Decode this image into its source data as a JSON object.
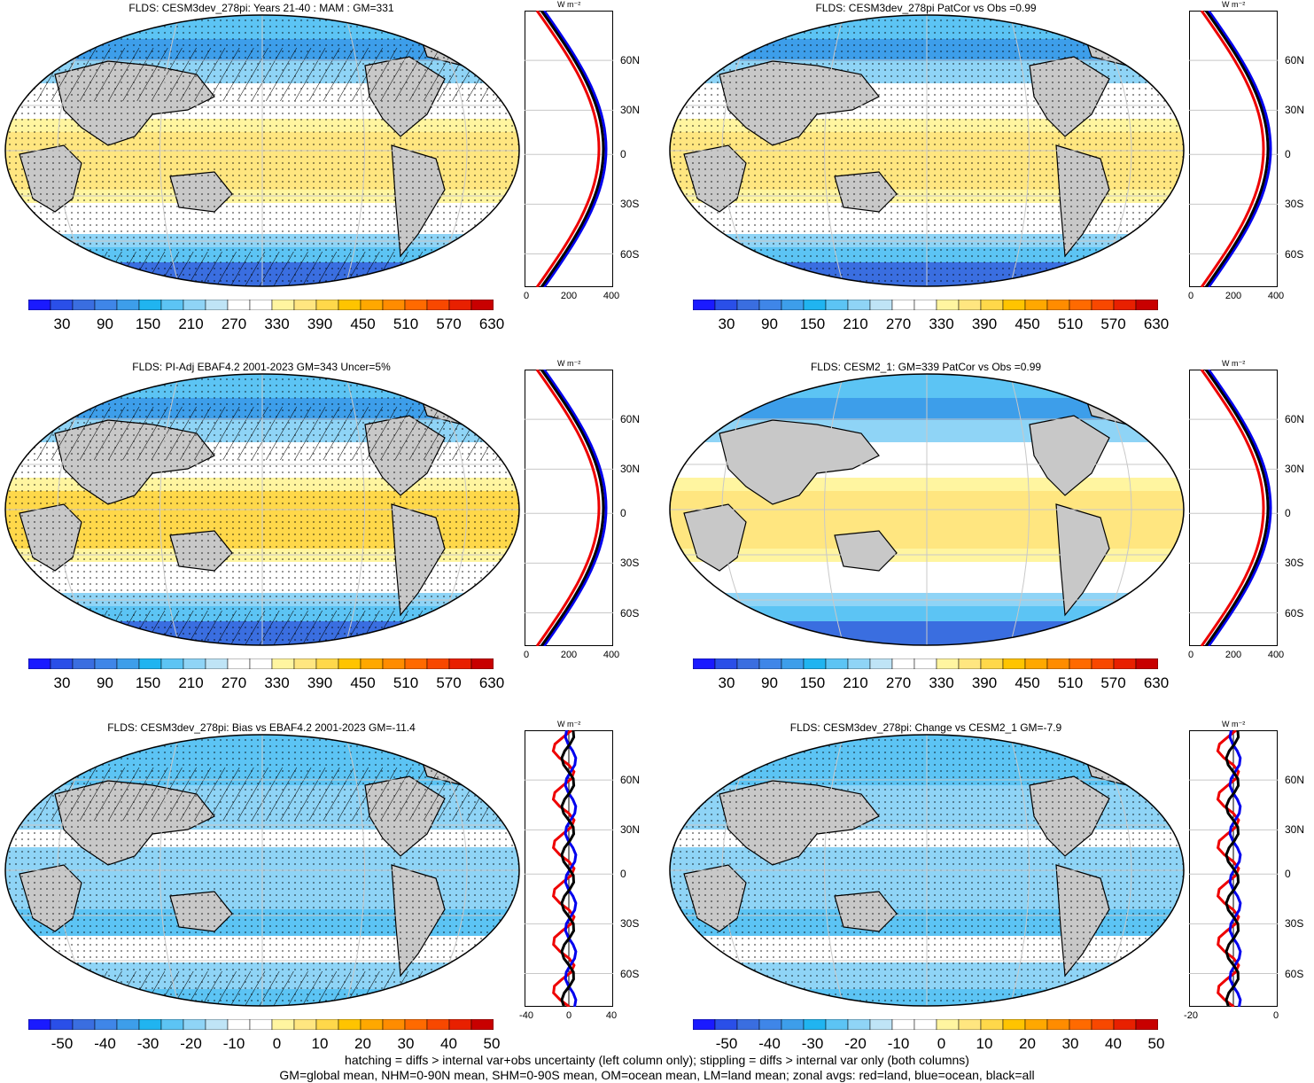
{
  "panels": [
    {
      "title": "FLDS: CESM3dev_278pi: Years 21-40 : MAM : GM=331",
      "scale": "abs",
      "ticks": [
        "30",
        "90",
        "150",
        "210",
        "270",
        "330",
        "390",
        "450",
        "510",
        "570",
        "630"
      ],
      "zonal_ticks": [
        "0",
        "200",
        "400"
      ],
      "hatch": true,
      "stipple": true
    },
    {
      "title": "FLDS: CESM3dev_278pi PatCor vs Obs =0.99",
      "scale": "abs",
      "ticks": [
        "30",
        "90",
        "150",
        "210",
        "270",
        "330",
        "390",
        "450",
        "510",
        "570",
        "630"
      ],
      "zonal_ticks": [
        "0",
        "200",
        "400"
      ],
      "hatch": false,
      "stipple": true
    },
    {
      "title": "FLDS: PI-Adj EBAF4.2 2001-2023 GM=343 Uncer=5%",
      "scale": "abs",
      "ticks": [
        "30",
        "90",
        "150",
        "210",
        "270",
        "330",
        "390",
        "450",
        "510",
        "570",
        "630"
      ],
      "zonal_ticks": [
        "0",
        "200",
        "400"
      ],
      "hatch": true,
      "stipple": true
    },
    {
      "title": "FLDS: CESM2_1: GM=339 PatCor vs Obs =0.99",
      "scale": "abs",
      "ticks": [
        "30",
        "90",
        "150",
        "210",
        "270",
        "330",
        "390",
        "450",
        "510",
        "570",
        "630"
      ],
      "zonal_ticks": [
        "0",
        "200",
        "400"
      ],
      "hatch": false,
      "stipple": false
    },
    {
      "title": "FLDS: CESM3dev_278pi: Bias vs EBAF4.2 2001-2023 GM=-11.4",
      "scale": "diff",
      "ticks": [
        "-50",
        "-40",
        "-30",
        "-20",
        "-10",
        "0",
        "10",
        "20",
        "30",
        "40",
        "50"
      ],
      "zonal_ticks": [
        "-40",
        "0",
        "40"
      ],
      "hatch": true,
      "stipple": true
    },
    {
      "title": "FLDS: CESM3dev_278pi: Change vs CESM2_1 GM=-7.9",
      "scale": "diff",
      "ticks": [
        "-50",
        "-40",
        "-30",
        "-20",
        "-10",
        "0",
        "10",
        "20",
        "30",
        "40",
        "50"
      ],
      "zonal_ticks": [
        "-20",
        "0"
      ],
      "hatch": false,
      "stipple": true
    }
  ],
  "zonal_unit": "W m⁻²",
  "lat_labels": [
    "60N",
    "30N",
    "0",
    "30S",
    "60S"
  ],
  "footer": {
    "line1": "hatching = diffs > internal var+obs uncertainty (left column only); stippling = diffs > internal var only (both columns)",
    "line2": "GM=global mean, NHM=0-90N mean, SHM=0-90S mean, OM=ocean mean, LM=land mean; zonal avgs: red=land, blue=ocean, black=all"
  },
  "colors": {
    "abs": [
      "#1a1aff",
      "#2a4fe8",
      "#3a6ee0",
      "#3f86e8",
      "#3d9eea",
      "#20b4f0",
      "#5cc4f4",
      "#8fd4f6",
      "#bfe4f6",
      "#ffffff",
      "#ffffff",
      "#fff5a0",
      "#ffe680",
      "#ffd84a",
      "#ffc400",
      "#ffa800",
      "#ff8c00",
      "#ff6a00",
      "#f84800",
      "#e82000",
      "#c80000"
    ],
    "land": "#c8c8c8",
    "zonal_land": "#ee0000",
    "zonal_ocean": "#0000ee",
    "zonal_all": "#000000"
  }
}
